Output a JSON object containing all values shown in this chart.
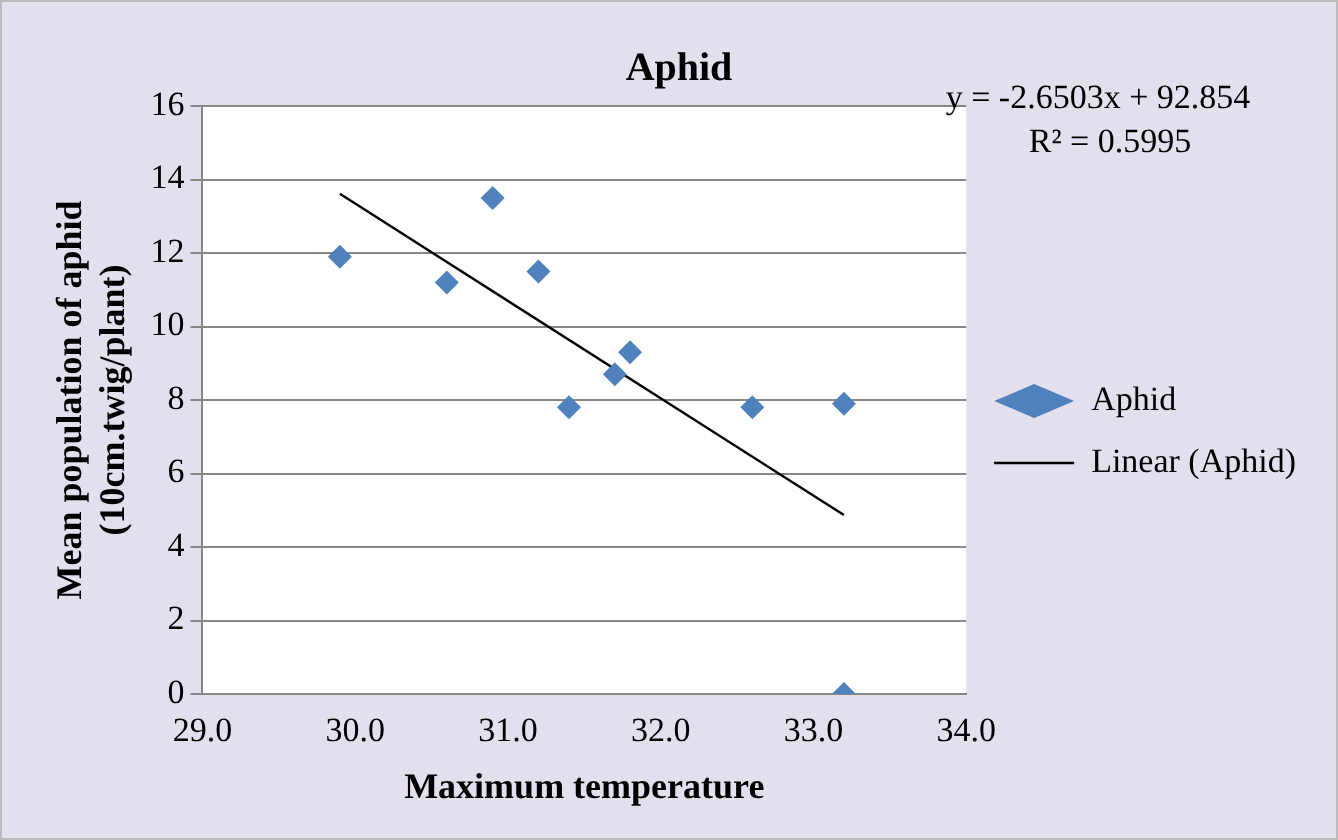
{
  "chart_data": {
    "type": "scatter",
    "title": "Aphid",
    "xlabel": "Maximum temperature",
    "ylabel": "Mean population of aphid\n(10cm.twig/plant)",
    "series": [
      {
        "name": "Aphid",
        "color": "#4f81bd",
        "marker": "diamond",
        "x": [
          29.9,
          30.6,
          30.9,
          31.2,
          31.4,
          31.7,
          31.8,
          32.6,
          33.2,
          33.2
        ],
        "values": [
          11.9,
          11.2,
          13.5,
          11.5,
          7.8,
          8.7,
          9.3,
          7.8,
          7.9,
          0
        ]
      },
      {
        "name": "Linear (Aphid)",
        "type": "line",
        "color": "#000000",
        "marker": "none",
        "x": [
          29.9,
          33.2
        ],
        "values": [
          13.61,
          4.87
        ]
      }
    ],
    "xlim": [
      29,
      34
    ],
    "xticks": [
      {
        "value": 29,
        "label": "29.0"
      },
      {
        "value": 30,
        "label": "30.0"
      },
      {
        "value": 31,
        "label": "31.0"
      },
      {
        "value": 32,
        "label": "32.0"
      },
      {
        "value": 33,
        "label": "33.0"
      },
      {
        "value": 34,
        "label": "34.0"
      }
    ],
    "ylim": [
      0,
      16
    ],
    "yticks": [
      0,
      2,
      4,
      6,
      8,
      10,
      12,
      14,
      16
    ],
    "grid": "y",
    "legend": "right",
    "annotations": [
      "y = -2.6503x + 92.854",
      "R² = 0.5995"
    ]
  }
}
